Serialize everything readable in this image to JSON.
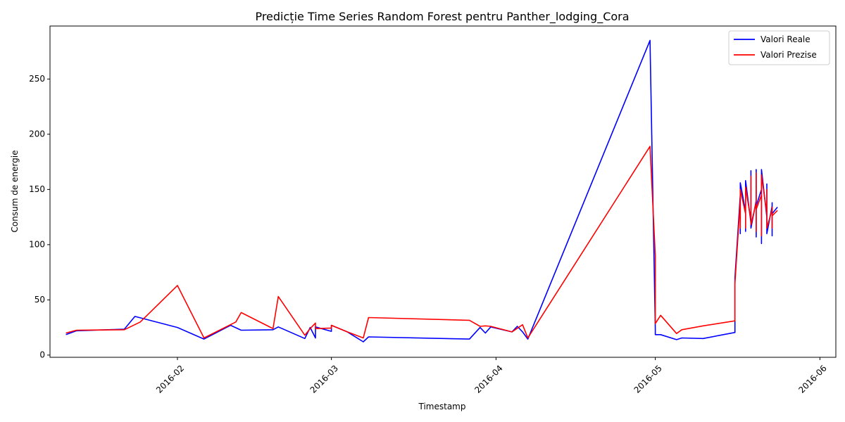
{
  "chart_data": {
    "type": "line",
    "title": "Predicție Time Series Random Forest pentru Panther_lodging_Cora",
    "xlabel": "Timestamp",
    "ylabel": "Consum de energie",
    "xlim": [
      "2016-01-08",
      "2016-06-04"
    ],
    "ylim": [
      -2,
      298
    ],
    "x_ticks": [
      "2016-02",
      "2016-03",
      "2016-04",
      "2016-05",
      "2016-06"
    ],
    "y_ticks": [
      0,
      50,
      100,
      150,
      200,
      250
    ],
    "grid": false,
    "legend": "top-right",
    "colors": {
      "real": "#0000ff",
      "predicted": "#ff0000"
    },
    "series": [
      {
        "name": "Valori Reale",
        "color": "#0000ff",
        "points": [
          [
            "2016-01-11",
            18.5
          ],
          [
            "2016-01-13",
            22
          ],
          [
            "2016-01-22",
            23.5
          ],
          [
            "2016-01-24",
            35
          ],
          [
            "2016-02-01",
            25
          ],
          [
            "2016-02-06",
            14.5
          ],
          [
            "2016-02-11",
            27
          ],
          [
            "2016-02-13",
            22.5
          ],
          [
            "2016-02-19",
            23
          ],
          [
            "2016-02-20",
            25.5
          ],
          [
            "2016-02-25",
            15
          ],
          [
            "2016-02-26",
            25
          ],
          [
            "2016-02-27",
            15.5
          ],
          [
            "2016-02-27",
            25.5
          ],
          [
            "2016-03-01",
            21.5
          ],
          [
            "2016-03-01",
            27
          ],
          [
            "2016-03-04",
            21
          ],
          [
            "2016-03-07",
            12
          ],
          [
            "2016-03-08",
            16.5
          ],
          [
            "2016-03-27",
            14.5
          ],
          [
            "2016-03-29",
            25
          ],
          [
            "2016-03-30",
            20
          ],
          [
            "2016-03-31",
            25.5
          ],
          [
            "2016-04-04",
            21
          ],
          [
            "2016-04-05",
            26
          ],
          [
            "2016-04-06",
            21
          ],
          [
            "2016-04-07",
            14.5
          ],
          [
            "2016-04-30",
            285
          ],
          [
            "2016-05-01",
            24
          ],
          [
            "2016-05-01",
            18.5
          ],
          [
            "2016-05-02",
            18.5
          ],
          [
            "2016-05-05",
            14
          ],
          [
            "2016-05-06",
            15.5
          ],
          [
            "2016-05-10",
            15
          ],
          [
            "2016-05-16",
            20.5
          ],
          [
            "2016-05-16",
            70
          ],
          [
            "2016-05-17",
            145
          ],
          [
            "2016-05-17",
            110
          ],
          [
            "2016-05-17",
            156
          ],
          [
            "2016-05-18",
            130
          ],
          [
            "2016-05-18",
            112
          ],
          [
            "2016-05-18",
            135
          ],
          [
            "2016-05-18",
            158
          ],
          [
            "2016-05-19",
            120
          ],
          [
            "2016-05-19",
            145
          ],
          [
            "2016-05-19",
            167
          ],
          [
            "2016-05-19",
            115
          ],
          [
            "2016-05-20",
            140
          ],
          [
            "2016-05-20",
            168
          ],
          [
            "2016-05-20",
            107
          ],
          [
            "2016-05-20",
            135
          ],
          [
            "2016-05-21",
            150
          ],
          [
            "2016-05-21",
            101
          ],
          [
            "2016-05-21",
            140
          ],
          [
            "2016-05-21",
            168
          ],
          [
            "2016-05-22",
            125
          ],
          [
            "2016-05-22",
            140
          ],
          [
            "2016-05-22",
            155
          ],
          [
            "2016-05-22",
            110
          ],
          [
            "2016-05-23",
            135
          ],
          [
            "2016-05-23",
            125
          ],
          [
            "2016-05-23",
            138
          ],
          [
            "2016-05-23",
            108
          ],
          [
            "2016-05-23",
            128
          ],
          [
            "2016-05-24",
            134
          ]
        ]
      },
      {
        "name": "Valori Prezise",
        "color": "#ff0000",
        "points": [
          [
            "2016-01-11",
            20
          ],
          [
            "2016-01-13",
            22.5
          ],
          [
            "2016-01-22",
            23
          ],
          [
            "2016-01-25",
            30
          ],
          [
            "2016-02-01",
            63
          ],
          [
            "2016-02-06",
            15.5
          ],
          [
            "2016-02-12",
            30
          ],
          [
            "2016-02-13",
            38.5
          ],
          [
            "2016-02-19",
            24
          ],
          [
            "2016-02-20",
            53
          ],
          [
            "2016-02-25",
            18
          ],
          [
            "2016-02-26",
            24
          ],
          [
            "2016-02-27",
            29
          ],
          [
            "2016-02-27",
            24
          ],
          [
            "2016-03-01",
            24.5
          ],
          [
            "2016-03-01",
            27
          ],
          [
            "2016-03-04",
            21
          ],
          [
            "2016-03-07",
            15.5
          ],
          [
            "2016-03-08",
            34
          ],
          [
            "2016-03-27",
            31.5
          ],
          [
            "2016-03-29",
            26
          ],
          [
            "2016-03-30",
            26.5
          ],
          [
            "2016-03-31",
            26
          ],
          [
            "2016-04-04",
            21
          ],
          [
            "2016-04-06",
            27.5
          ],
          [
            "2016-04-07",
            15.5
          ],
          [
            "2016-04-30",
            189
          ],
          [
            "2016-05-01",
            90
          ],
          [
            "2016-05-01",
            28.5
          ],
          [
            "2016-05-02",
            36
          ],
          [
            "2016-05-05",
            19.5
          ],
          [
            "2016-05-06",
            23
          ],
          [
            "2016-05-10",
            26.5
          ],
          [
            "2016-05-16",
            31
          ],
          [
            "2016-05-16",
            65
          ],
          [
            "2016-05-17",
            140
          ],
          [
            "2016-05-17",
            115
          ],
          [
            "2016-05-17",
            150
          ],
          [
            "2016-05-18",
            128
          ],
          [
            "2016-05-18",
            115
          ],
          [
            "2016-05-18",
            132
          ],
          [
            "2016-05-18",
            152
          ],
          [
            "2016-05-19",
            122
          ],
          [
            "2016-05-19",
            140
          ],
          [
            "2016-05-19",
            162
          ],
          [
            "2016-05-19",
            118
          ],
          [
            "2016-05-20",
            138
          ],
          [
            "2016-05-20",
            165
          ],
          [
            "2016-05-20",
            112
          ],
          [
            "2016-05-20",
            132
          ],
          [
            "2016-05-21",
            145
          ],
          [
            "2016-05-21",
            108
          ],
          [
            "2016-05-21",
            138
          ],
          [
            "2016-05-21",
            163
          ],
          [
            "2016-05-22",
            128
          ],
          [
            "2016-05-22",
            138
          ],
          [
            "2016-05-22",
            150
          ],
          [
            "2016-05-22",
            115
          ],
          [
            "2016-05-23",
            132
          ],
          [
            "2016-05-23",
            127
          ],
          [
            "2016-05-23",
            134
          ],
          [
            "2016-05-23",
            115
          ],
          [
            "2016-05-23",
            126
          ],
          [
            "2016-05-24",
            131
          ]
        ]
      }
    ]
  }
}
